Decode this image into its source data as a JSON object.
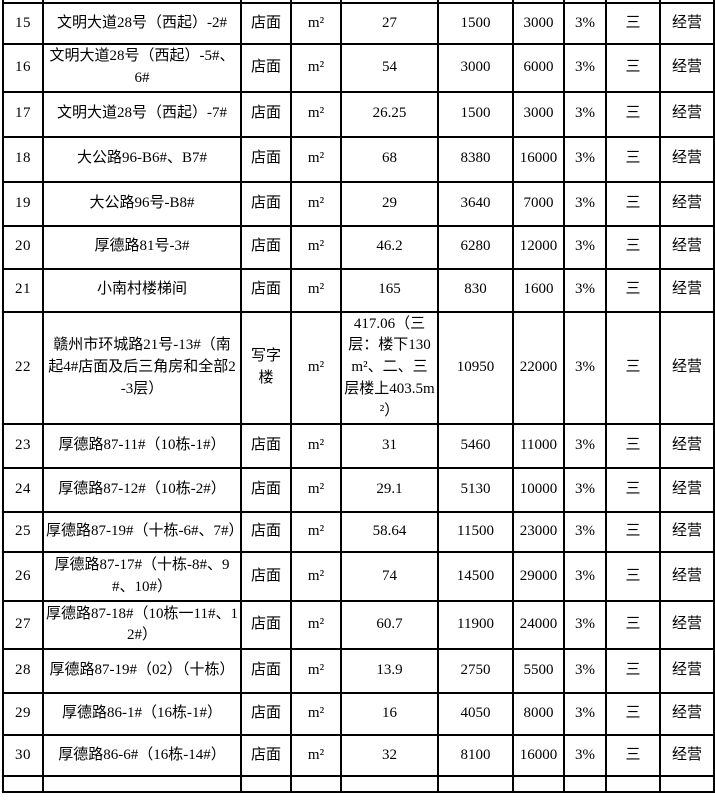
{
  "table": {
    "rows": [
      {
        "no": "15",
        "address": "文明大道28号（西起）-2#",
        "type": "店面",
        "unit": "m²",
        "area": "27",
        "price_low": "1500",
        "price_high": "3000",
        "rate": "3%",
        "grade": "三",
        "use": "经营"
      },
      {
        "no": "16",
        "address": "文明大道28号（西起）-5#、6#",
        "type": "店面",
        "unit": "m²",
        "area": "54",
        "price_low": "3000",
        "price_high": "6000",
        "rate": "3%",
        "grade": "三",
        "use": "经营"
      },
      {
        "no": "17",
        "address": "文明大道28号（西起）-7#",
        "type": "店面",
        "unit": "m²",
        "area": "26.25",
        "price_low": "1500",
        "price_high": "3000",
        "rate": "3%",
        "grade": "三",
        "use": "经营"
      },
      {
        "no": "18",
        "address": "大公路96-B6#、B7#",
        "type": "店面",
        "unit": "m²",
        "area": "68",
        "price_low": "8380",
        "price_high": "16000",
        "rate": "3%",
        "grade": "三",
        "use": "经营"
      },
      {
        "no": "19",
        "address": "大公路96号-B8#",
        "type": "店面",
        "unit": "m²",
        "area": "29",
        "price_low": "3640",
        "price_high": "7000",
        "rate": "3%",
        "grade": "三",
        "use": "经营"
      },
      {
        "no": "20",
        "address": "厚德路81号-3#",
        "type": "店面",
        "unit": "m²",
        "area": "46.2",
        "price_low": "6280",
        "price_high": "12000",
        "rate": "3%",
        "grade": "三",
        "use": "经营"
      },
      {
        "no": "21",
        "address": "小南村楼梯间",
        "type": "店面",
        "unit": "m²",
        "area": "165",
        "price_low": "830",
        "price_high": "1600",
        "rate": "3%",
        "grade": "三",
        "use": "经营"
      },
      {
        "no": "22",
        "address": "赣州市环城路21号-13#（南起4#店面及后三角房和全部2-3层）",
        "type": "写字楼",
        "unit": "m²",
        "area": "417.06（三层：楼下130m²、二、三层楼上403.5m²）",
        "price_low": "10950",
        "price_high": "22000",
        "rate": "3%",
        "grade": "三",
        "use": "经营"
      },
      {
        "no": "23",
        "address": "厚德路87-11#（10栋-1#）",
        "type": "店面",
        "unit": "m²",
        "area": "31",
        "price_low": "5460",
        "price_high": "11000",
        "rate": "3%",
        "grade": "三",
        "use": "经营"
      },
      {
        "no": "24",
        "address": "厚德路87-12#（10栋-2#）",
        "type": "店面",
        "unit": "m²",
        "area": "29.1",
        "price_low": "5130",
        "price_high": "10000",
        "rate": "3%",
        "grade": "三",
        "use": "经营"
      },
      {
        "no": "25",
        "address": "厚德路87-19#（十栋-6#、7#）",
        "type": "店面",
        "unit": "m²",
        "area": "58.64",
        "price_low": "11500",
        "price_high": "23000",
        "rate": "3%",
        "grade": "三",
        "use": "经营"
      },
      {
        "no": "26",
        "address": "厚德路87-17#（十栋-8#、9#、10#）",
        "type": "店面",
        "unit": "m²",
        "area": "74",
        "price_low": "14500",
        "price_high": "29000",
        "rate": "3%",
        "grade": "三",
        "use": "经营"
      },
      {
        "no": "27",
        "address": "厚德路87-18#（10栋一11#、12#）",
        "type": "店面",
        "unit": "m²",
        "area": "60.7",
        "price_low": "11900",
        "price_high": "24000",
        "rate": "3%",
        "grade": "三",
        "use": "经营"
      },
      {
        "no": "28",
        "address": "厚德路87-19#（02）（十栋）",
        "type": "店面",
        "unit": "m²",
        "area": "13.9",
        "price_low": "2750",
        "price_high": "5500",
        "rate": "3%",
        "grade": "三",
        "use": "经营"
      },
      {
        "no": "29",
        "address": "厚德路86-1#（16栋-1#）",
        "type": "店面",
        "unit": "m²",
        "area": "16",
        "price_low": "4050",
        "price_high": "8000",
        "rate": "3%",
        "grade": "三",
        "use": "经营"
      },
      {
        "no": "30",
        "address": "厚德路86-6#（16栋-14#）",
        "type": "店面",
        "unit": "m²",
        "area": "32",
        "price_low": "8100",
        "price_high": "16000",
        "rate": "3%",
        "grade": "三",
        "use": "经营"
      }
    ]
  }
}
